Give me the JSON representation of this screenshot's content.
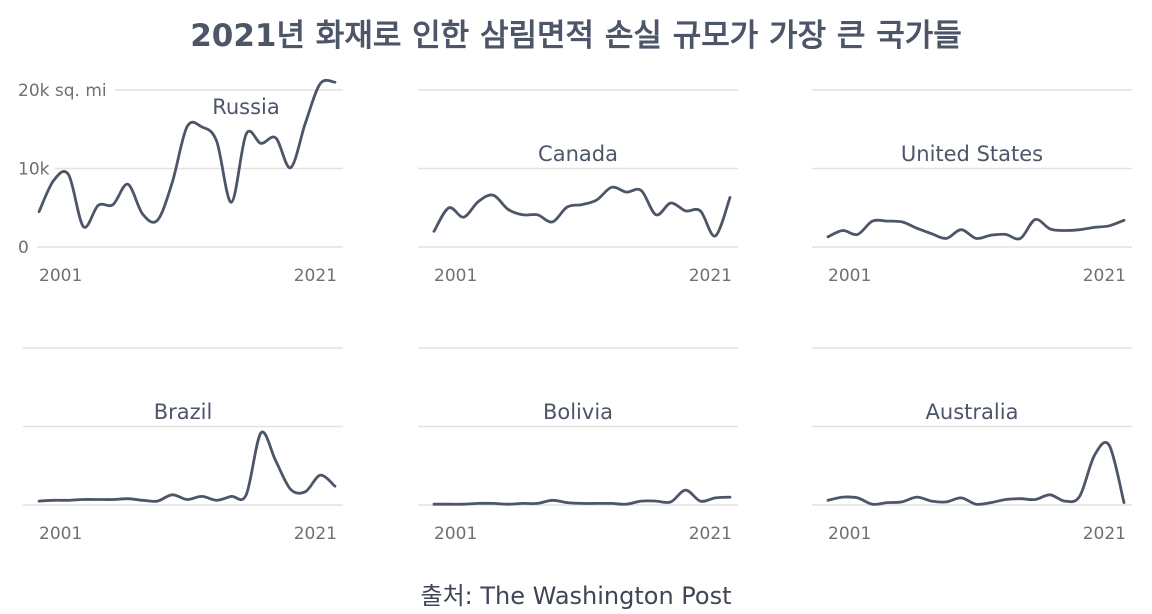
{
  "title": "2021년 화재로 인한 삼림면적 손실 규모가 가장 큰 국가들",
  "source": "출처: The Washington Post",
  "colors": {
    "line": "#4d5668",
    "grid": "#e2e2e2",
    "text": "#4d5668",
    "axis": "#707070"
  },
  "chart_data": [
    {
      "type": "line",
      "title": "Russia",
      "x": [
        2001,
        2002,
        2003,
        2004,
        2005,
        2006,
        2007,
        2008,
        2009,
        2010,
        2011,
        2012,
        2013,
        2014,
        2015,
        2016,
        2017,
        2018,
        2019,
        2020,
        2021
      ],
      "values": [
        4.5,
        8.5,
        9.2,
        2.6,
        5.3,
        5.4,
        8.0,
        4.2,
        3.4,
        8.2,
        15.3,
        15.3,
        13.5,
        5.7,
        14.4,
        13.2,
        13.9,
        10.1,
        15.8,
        20.8,
        21.0
      ],
      "ylim": [
        0,
        20
      ],
      "y_ticks": [
        "20k sq. mi",
        "10k",
        "0"
      ],
      "x_ticks": [
        "2001",
        "2021"
      ]
    },
    {
      "type": "line",
      "title": "Canada",
      "x": [
        2001,
        2002,
        2003,
        2004,
        2005,
        2006,
        2007,
        2008,
        2009,
        2010,
        2011,
        2012,
        2013,
        2014,
        2015,
        2016,
        2017,
        2018,
        2019,
        2020,
        2021
      ],
      "values": [
        2.0,
        5.0,
        3.8,
        5.8,
        6.6,
        4.8,
        4.1,
        4.1,
        3.2,
        5.1,
        5.4,
        6.0,
        7.6,
        7.0,
        7.2,
        4.1,
        5.6,
        4.6,
        4.6,
        1.4,
        6.3
      ],
      "ylim": [
        0,
        20
      ],
      "x_ticks": [
        "2001",
        "2021"
      ]
    },
    {
      "type": "line",
      "title": "United States",
      "x": [
        2001,
        2002,
        2003,
        2004,
        2005,
        2006,
        2007,
        2008,
        2009,
        2010,
        2011,
        2012,
        2013,
        2014,
        2015,
        2016,
        2017,
        2018,
        2019,
        2020,
        2021
      ],
      "values": [
        1.3,
        2.1,
        1.6,
        3.3,
        3.3,
        3.2,
        2.4,
        1.7,
        1.1,
        2.2,
        1.1,
        1.5,
        1.6,
        1.1,
        3.5,
        2.3,
        2.1,
        2.2,
        2.5,
        2.7,
        3.4
      ],
      "ylim": [
        0,
        20
      ],
      "x_ticks": [
        "2001",
        "2021"
      ]
    },
    {
      "type": "line",
      "title": "Brazil",
      "x": [
        2001,
        2002,
        2003,
        2004,
        2005,
        2006,
        2007,
        2008,
        2009,
        2010,
        2011,
        2012,
        2013,
        2014,
        2015,
        2016,
        2017,
        2018,
        2019,
        2020,
        2021
      ],
      "values": [
        0.5,
        0.6,
        0.6,
        0.7,
        0.7,
        0.7,
        0.8,
        0.6,
        0.5,
        1.3,
        0.7,
        1.1,
        0.6,
        1.1,
        1.3,
        9.2,
        5.6,
        2.0,
        1.7,
        3.8,
        2.4
      ],
      "ylim": [
        0,
        20
      ],
      "x_ticks": [
        "2001",
        "2021"
      ]
    },
    {
      "type": "line",
      "title": "Bolivia",
      "x": [
        2001,
        2002,
        2003,
        2004,
        2005,
        2006,
        2007,
        2008,
        2009,
        2010,
        2011,
        2012,
        2013,
        2014,
        2015,
        2016,
        2017,
        2018,
        2019,
        2020,
        2021
      ],
      "values": [
        0.1,
        0.1,
        0.1,
        0.2,
        0.2,
        0.1,
        0.2,
        0.2,
        0.6,
        0.3,
        0.2,
        0.2,
        0.2,
        0.1,
        0.5,
        0.5,
        0.4,
        1.9,
        0.5,
        0.9,
        1.0
      ],
      "ylim": [
        0,
        20
      ],
      "x_ticks": [
        "2001",
        "2021"
      ]
    },
    {
      "type": "line",
      "title": "Australia",
      "x": [
        2001,
        2002,
        2003,
        2004,
        2005,
        2006,
        2007,
        2008,
        2009,
        2010,
        2011,
        2012,
        2013,
        2014,
        2015,
        2016,
        2017,
        2018,
        2019,
        2020,
        2021
      ],
      "values": [
        0.6,
        1.0,
        0.9,
        0.1,
        0.3,
        0.4,
        1.0,
        0.5,
        0.4,
        0.9,
        0.1,
        0.3,
        0.7,
        0.8,
        0.7,
        1.3,
        0.5,
        1.1,
        6.3,
        7.6,
        0.3
      ],
      "ylim": [
        0,
        20
      ],
      "x_ticks": [
        "2001",
        "2021"
      ]
    }
  ]
}
